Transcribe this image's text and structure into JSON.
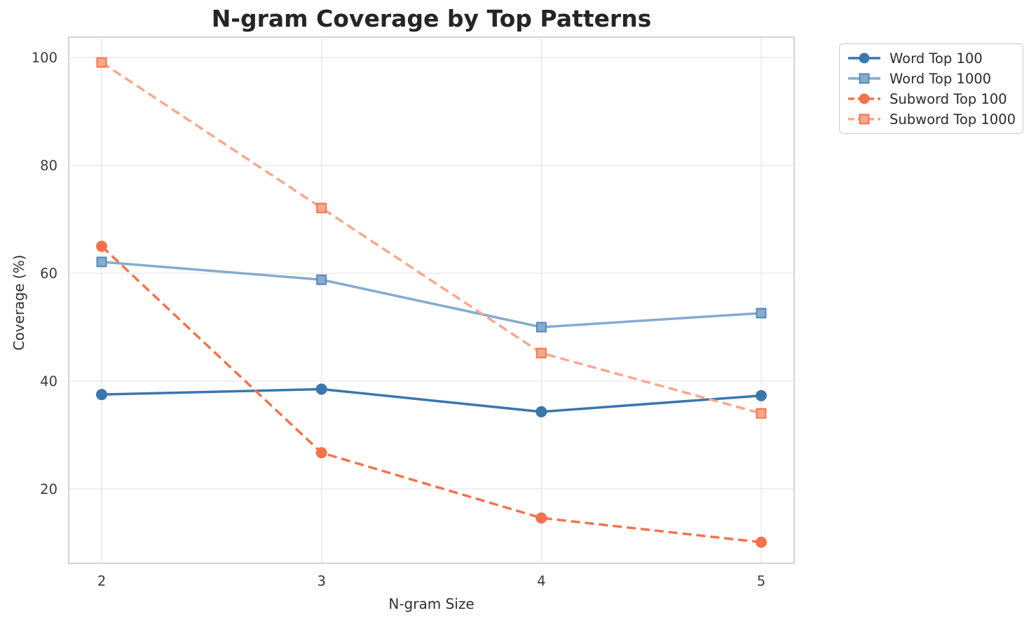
{
  "page": {
    "background_color": "#ffffff",
    "text_color": "#303030",
    "grid_color": "#e9e9e9",
    "frame_color": "#cfcfcf"
  },
  "chart_data": {
    "type": "line",
    "title": "N-gram Coverage by Top Patterns",
    "xlabel": "N-gram Size",
    "ylabel": "Coverage (%)",
    "x": [
      2,
      3,
      4,
      5
    ],
    "x_tick_labels": [
      "2",
      "3",
      "4",
      "5"
    ],
    "y_ticks": [
      20,
      40,
      60,
      80,
      100
    ],
    "xlim": [
      1.85,
      5.15
    ],
    "ylim": [
      6.2,
      103.8
    ],
    "grid": true,
    "legend_position": "outside upper right",
    "series": [
      {
        "name": "Word Top 100",
        "values": [
          37.5,
          38.5,
          34.3,
          37.3
        ],
        "color": "#3b76ad",
        "marker": "circle",
        "marker_edge": "#3b76ad",
        "dash": false
      },
      {
        "name": "Word Top 1000",
        "values": [
          62.1,
          58.8,
          50.0,
          52.6
        ],
        "color": "#85abce",
        "marker": "square",
        "marker_edge": "#5688b8",
        "dash": false
      },
      {
        "name": "Subword Top 100",
        "values": [
          65.0,
          26.7,
          14.6,
          10.1
        ],
        "color": "#f4724b",
        "marker": "circle",
        "marker_edge": "#f4724b",
        "dash": true
      },
      {
        "name": "Subword Top 1000",
        "values": [
          99.1,
          72.1,
          45.2,
          34.0
        ],
        "color": "#f9a78b",
        "marker": "square",
        "marker_edge": "#f0764c",
        "dash": true
      }
    ]
  }
}
